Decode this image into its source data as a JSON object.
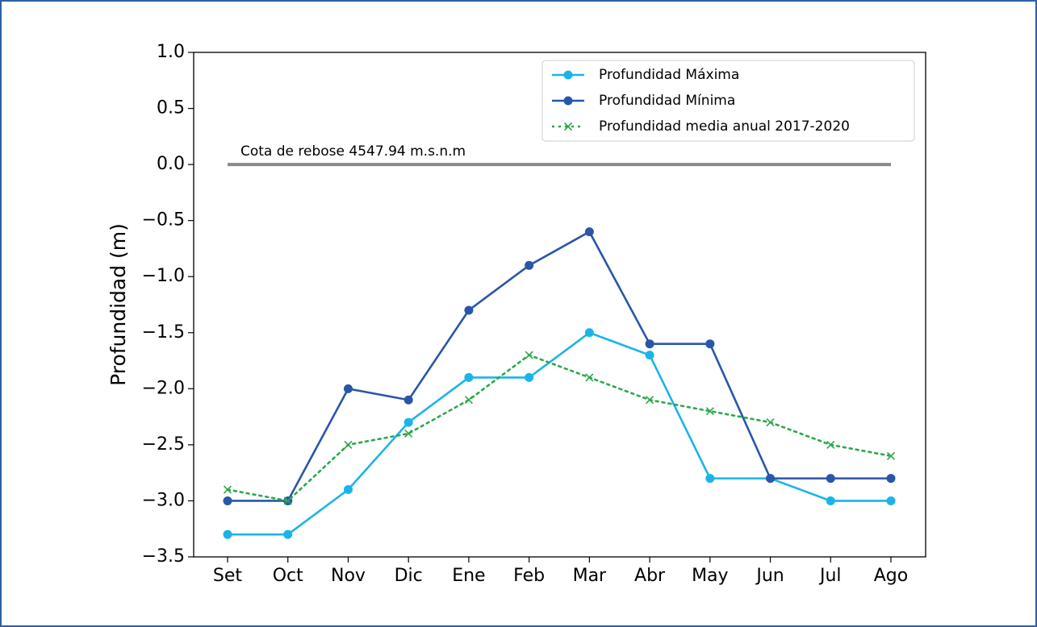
{
  "chart_data": {
    "type": "line",
    "ylabel": "Profundidad (m)",
    "categories": [
      "Set",
      "Oct",
      "Nov",
      "Dic",
      "Ene",
      "Feb",
      "Mar",
      "Abr",
      "May",
      "Jun",
      "Jul",
      "Ago"
    ],
    "series": [
      {
        "name": "Profundidad Máxima",
        "color": "#1bb4e8",
        "marker": "o",
        "linestyle": "solid",
        "values": [
          -3.3,
          -3.3,
          -2.9,
          -2.3,
          -1.9,
          -1.9,
          -1.5,
          -1.7,
          -2.8,
          -2.8,
          -3.0,
          -3.0
        ]
      },
      {
        "name": "Profundidad Mínima",
        "color": "#2a56a8",
        "marker": "o",
        "linestyle": "solid",
        "values": [
          -3.0,
          -3.0,
          -2.0,
          -2.1,
          -1.3,
          -0.9,
          -0.6,
          -1.6,
          -1.6,
          -2.8,
          -2.8,
          -2.8
        ]
      },
      {
        "name": "Profundidad media anual 2017-2020",
        "color": "#2ca84a",
        "marker": "x",
        "linestyle": "dotted",
        "values": [
          -2.9,
          -3.0,
          -2.5,
          -2.4,
          -2.1,
          -1.7,
          -1.9,
          -2.1,
          -2.2,
          -2.3,
          -2.5,
          -2.6
        ]
      }
    ],
    "reference_line": {
      "value": 0,
      "label": "Cota de rebose 4547.94 m.s.n.m",
      "color": "#868a8a"
    },
    "ylim": [
      -3.5,
      1.0
    ],
    "yticks": [
      {
        "value": -3.5,
        "label": "−3.5"
      },
      {
        "value": -3.0,
        "label": "−3.0"
      },
      {
        "value": -2.5,
        "label": "−2.5"
      },
      {
        "value": -2.0,
        "label": "−2.0"
      },
      {
        "value": -1.5,
        "label": "−1.5"
      },
      {
        "value": -1.0,
        "label": "−1.0"
      },
      {
        "value": -0.5,
        "label": "−0.5"
      },
      {
        "value": 0.0,
        "label": "0.0"
      },
      {
        "value": 0.5,
        "label": "0.5"
      },
      {
        "value": 1.0,
        "label": "1.0"
      }
    ],
    "grid": false,
    "legend": "upper right"
  }
}
